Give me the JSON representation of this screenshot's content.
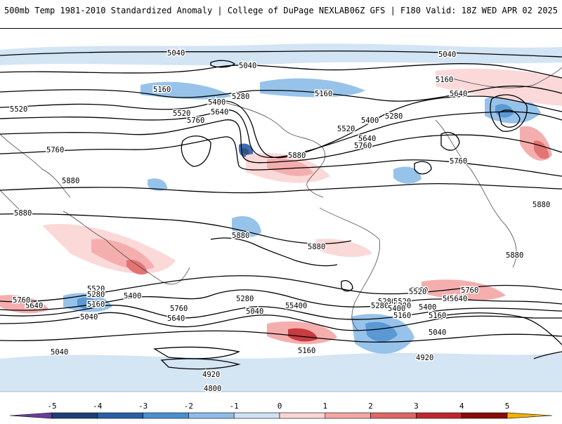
{
  "header": {
    "title_left": "500mb Temp 1981-2010 Standardized Anomaly | College of DuPage NEXLAB",
    "title_right": "06Z GFS | F180 Valid: 18Z WED APR 02 2025"
  },
  "legend": {
    "ticks": [
      "-5",
      "-4",
      "-3",
      "-2",
      "-1",
      "0",
      "1",
      "2",
      "3",
      "4",
      "5"
    ],
    "colors": [
      "#6a3d9a",
      "#1f3f73",
      "#2b5ea8",
      "#4a8fd0",
      "#8cbde8",
      "#cfe2f3",
      "#fbd5d5",
      "#f4a6a6",
      "#e06666",
      "#c0272d",
      "#8b0a0a",
      "#f0b400"
    ]
  },
  "contour_labels": [
    {
      "text": "5040"
    },
    {
      "text": "5040"
    },
    {
      "text": "5040"
    },
    {
      "text": "5040"
    },
    {
      "text": "5160"
    },
    {
      "text": "5160"
    },
    {
      "text": "5160"
    },
    {
      "text": "5280"
    },
    {
      "text": "5280"
    },
    {
      "text": "5280"
    },
    {
      "text": "5400"
    },
    {
      "text": "5400"
    },
    {
      "text": "5400"
    },
    {
      "text": "5520"
    },
    {
      "text": "5520"
    },
    {
      "text": "5520"
    },
    {
      "text": "5520"
    },
    {
      "text": "5640"
    },
    {
      "text": "5640"
    },
    {
      "text": "5640"
    },
    {
      "text": "5640"
    },
    {
      "text": "5760"
    },
    {
      "text": "5760"
    },
    {
      "text": "5760"
    },
    {
      "text": "5760"
    },
    {
      "text": "5880"
    },
    {
      "text": "5880"
    },
    {
      "text": "5880"
    },
    {
      "text": "5880"
    },
    {
      "text": "5880"
    },
    {
      "text": "5880"
    },
    {
      "text": "5880"
    },
    {
      "text": "5760"
    },
    {
      "text": "5640"
    },
    {
      "text": "5520"
    },
    {
      "text": "5400"
    },
    {
      "text": "5280"
    },
    {
      "text": "5160"
    },
    {
      "text": "5040"
    },
    {
      "text": "5520"
    },
    {
      "text": "5400"
    },
    {
      "text": "5280"
    },
    {
      "text": "5160"
    },
    {
      "text": "5040"
    },
    {
      "text": "5640"
    },
    {
      "text": "5760"
    },
    {
      "text": "5160"
    },
    {
      "text": "5280"
    },
    {
      "text": "5400"
    },
    {
      "text": "4920"
    },
    {
      "text": "4800"
    },
    {
      "text": "4920"
    },
    {
      "text": "5040"
    },
    {
      "text": "5160"
    },
    {
      "text": "5280"
    },
    {
      "text": "5400"
    },
    {
      "text": "5520"
    },
    {
      "text": "5640"
    },
    {
      "text": "5760"
    }
  ]
}
